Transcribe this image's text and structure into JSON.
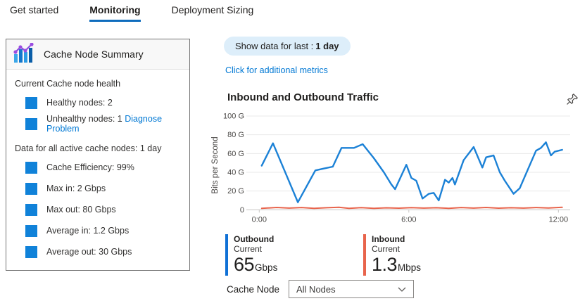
{
  "tabs": [
    {
      "label": "Get started",
      "active": false
    },
    {
      "label": "Monitoring",
      "active": true
    },
    {
      "label": "Deployment Sizing",
      "active": false
    }
  ],
  "summary_card": {
    "title": "Cache Node Summary",
    "icon": "bar-line-chart-icon",
    "square_color": "#1082d9",
    "health_section_label": "Current Cache node health",
    "health_items": [
      {
        "label": "Healthy nodes: 2",
        "link": ""
      },
      {
        "label": "Unhealthy nodes: 1",
        "link": "Diagnose Problem"
      }
    ],
    "data_section_label": "Data for all active cache nodes: 1 day",
    "data_items": [
      "Cache Efficiency: 99%",
      "Max in: 2 Gbps",
      "Max out: 80 Gbps",
      "Average in: 1.2 Gbps",
      "Average out: 30 Gbps"
    ]
  },
  "controls": {
    "show_data_label": "Show data for last :",
    "show_data_value": "1 day",
    "additional_metrics_link": "Click for additional metrics",
    "cache_node_label": "Cache Node",
    "cache_node_value": "All Nodes"
  },
  "legend": [
    {
      "name": "Outbound",
      "sub": "Current",
      "value": "65",
      "unit": "Gbps",
      "color": "#1071d6"
    },
    {
      "name": "Inbound",
      "sub": "Current",
      "value": "1.3",
      "unit": "Mbps",
      "color": "#e8644c"
    }
  ],
  "chart_data": {
    "type": "line",
    "title": "Inbound and Outbound Traffic",
    "ylabel": "Bits per Second",
    "ylim": [
      0,
      100
    ],
    "grid": true,
    "legend_position": "bottom",
    "x_unit": "hours",
    "y_ticks": [
      {
        "label": "100 G",
        "value": 100
      },
      {
        "label": "80 G",
        "value": 80
      },
      {
        "label": "60 G",
        "value": 60
      },
      {
        "label": "40 G",
        "value": 40
      },
      {
        "label": "20 G",
        "value": 20
      },
      {
        "label": "0",
        "value": 0
      }
    ],
    "x_ticks": [
      {
        "label": "0:00",
        "t": 0
      },
      {
        "label": "6:00",
        "t": 6
      },
      {
        "label": "12:00",
        "t": 12
      }
    ],
    "series": [
      {
        "name": "Outbound",
        "color": "#1b81d6",
        "current": "65 Gbps",
        "points": [
          [
            0.1,
            47
          ],
          [
            0.55,
            71
          ],
          [
            1.55,
            8
          ],
          [
            2.25,
            42
          ],
          [
            2.6,
            44
          ],
          [
            2.95,
            46
          ],
          [
            3.3,
            66
          ],
          [
            3.8,
            66
          ],
          [
            4.15,
            70
          ],
          [
            4.6,
            55
          ],
          [
            5.0,
            40
          ],
          [
            5.3,
            27
          ],
          [
            5.45,
            22
          ],
          [
            5.9,
            48
          ],
          [
            6.1,
            34
          ],
          [
            6.3,
            31
          ],
          [
            6.55,
            12
          ],
          [
            6.8,
            17
          ],
          [
            7.0,
            18
          ],
          [
            7.2,
            10
          ],
          [
            7.45,
            32
          ],
          [
            7.6,
            29
          ],
          [
            7.75,
            34
          ],
          [
            7.85,
            27
          ],
          [
            8.2,
            53
          ],
          [
            8.6,
            67
          ],
          [
            8.95,
            45
          ],
          [
            9.1,
            56
          ],
          [
            9.4,
            58
          ],
          [
            9.65,
            40
          ],
          [
            9.85,
            31
          ],
          [
            10.2,
            17
          ],
          [
            10.45,
            23
          ],
          [
            11.1,
            63
          ],
          [
            11.3,
            66
          ],
          [
            11.5,
            72
          ],
          [
            11.7,
            58
          ],
          [
            11.85,
            62
          ],
          [
            12.15,
            64
          ]
        ]
      },
      {
        "name": "Inbound",
        "color": "#e8644c",
        "current": "1.3 Mbps",
        "points": [
          [
            0.1,
            1.5
          ],
          [
            0.7,
            2.5
          ],
          [
            1.2,
            1.8
          ],
          [
            1.7,
            2.4
          ],
          [
            2.2,
            1.6
          ],
          [
            2.7,
            2.2
          ],
          [
            3.2,
            2.6
          ],
          [
            3.6,
            1.5
          ],
          [
            4.1,
            2.3
          ],
          [
            4.6,
            1.6
          ],
          [
            5.1,
            2.1
          ],
          [
            5.6,
            1.7
          ],
          [
            6.1,
            2.3
          ],
          [
            6.6,
            1.8
          ],
          [
            7.1,
            2.2
          ],
          [
            7.6,
            1.6
          ],
          [
            8.1,
            2.4
          ],
          [
            8.6,
            1.8
          ],
          [
            9.1,
            2.5
          ],
          [
            9.6,
            1.7
          ],
          [
            10.1,
            2.2
          ],
          [
            10.6,
            1.8
          ],
          [
            11.1,
            2.4
          ],
          [
            11.6,
            1.9
          ],
          [
            12.15,
            2.6
          ]
        ]
      }
    ]
  }
}
